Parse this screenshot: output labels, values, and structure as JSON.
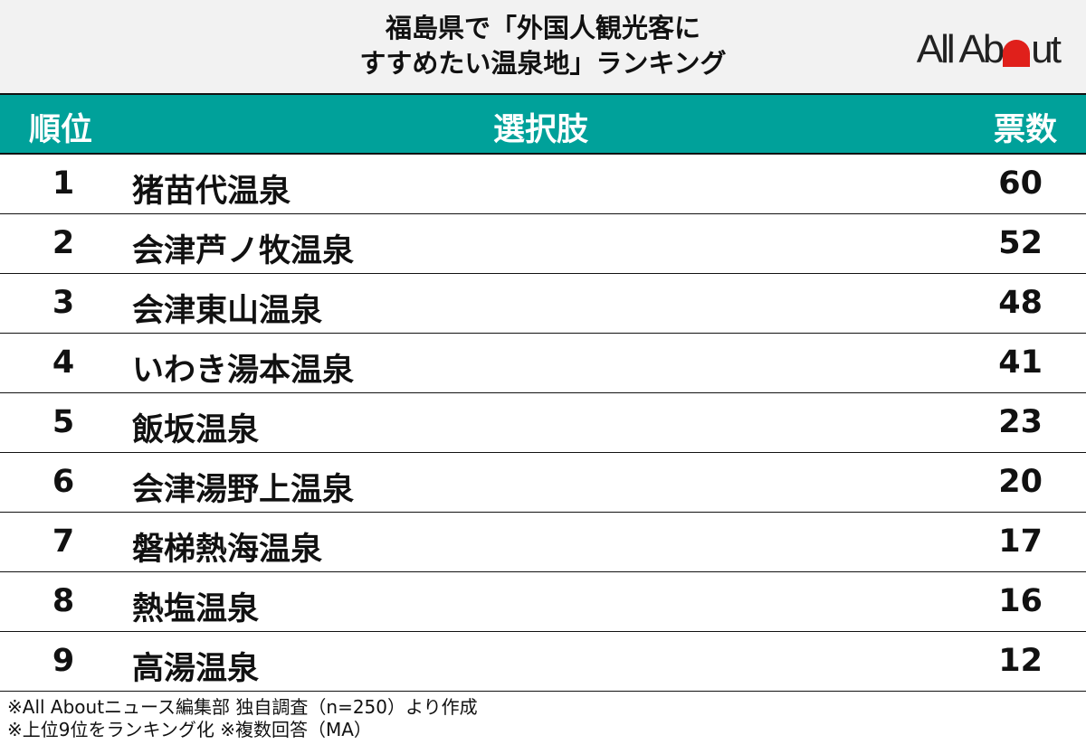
{
  "header": {
    "title_line1": "福島県で「外国人観光客に",
    "title_line2": "すすめたい温泉地」ランキング",
    "logo_text_left": "All Ab",
    "logo_text_right": "ut",
    "logo_dot_color": "#e0201b"
  },
  "colors": {
    "header_bg": "#f2f2f2",
    "table_header_bg": "#00a19a"
  },
  "chart_data": {
    "type": "table",
    "columns": [
      "順位",
      "選択肢",
      "票数"
    ],
    "rows": [
      {
        "rank": "1",
        "name": "猪苗代温泉",
        "votes": "60"
      },
      {
        "rank": "2",
        "name": "会津芦ノ牧温泉",
        "votes": "52"
      },
      {
        "rank": "3",
        "name": "会津東山温泉",
        "votes": "48"
      },
      {
        "rank": "4",
        "name": "いわき湯本温泉",
        "votes": "41"
      },
      {
        "rank": "5",
        "name": "飯坂温泉",
        "votes": "23"
      },
      {
        "rank": "6",
        "name": "会津湯野上温泉",
        "votes": "20"
      },
      {
        "rank": "7",
        "name": "磐梯熱海温泉",
        "votes": "17"
      },
      {
        "rank": "8",
        "name": "熱塩温泉",
        "votes": "16"
      },
      {
        "rank": "9",
        "name": "高湯温泉",
        "votes": "12"
      }
    ]
  },
  "footer": {
    "note1": "※All Aboutニュース編集部 独自調査（n=250）より作成",
    "note2": "※上位9位をランキング化 ※複数回答（MA）"
  }
}
